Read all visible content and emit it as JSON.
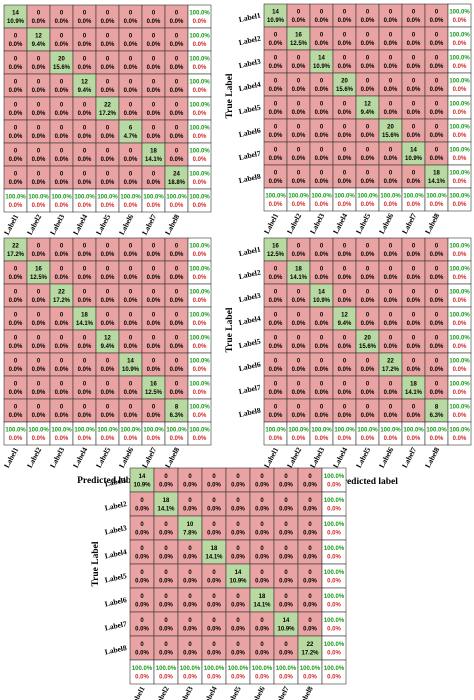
{
  "labels": [
    "Label1",
    "Label2",
    "Label3",
    "Label4",
    "Label5",
    "Label6",
    "Label7",
    "Label8"
  ],
  "colors": {
    "correct": "#b9d9a2",
    "incorrect": "#eaa3a3",
    "summary_bg": "#ffffff",
    "pct_good": "#1a9b1a",
    "pct_bad": "#d42a2a",
    "grid": "#333333",
    "text": "#000000"
  },
  "chart_data": [
    {
      "type": "heatmap",
      "show_true_label": false,
      "xlabel": "Predicted label",
      "ylabel": "",
      "diagonal": [
        14,
        12,
        20,
        12,
        22,
        6,
        18,
        24
      ],
      "diagonal_pct": [
        "10.9%",
        "9.4%",
        "15.6%",
        "9.4%",
        "17.2%",
        "4.7%",
        "14.1%",
        "18.8%"
      ],
      "zero_pct": "0.0%",
      "row_summary": [
        [
          "100.0%",
          "0.0%"
        ],
        [
          "100.0%",
          "0.0%"
        ],
        [
          "100.0%",
          "0.0%"
        ],
        [
          "100.0%",
          "0.0%"
        ],
        [
          "100.0%",
          "0.0%"
        ],
        [
          "100.0%",
          "0.0%"
        ],
        [
          "100.0%",
          "0.0%"
        ],
        [
          "100.0%",
          "0.0%"
        ]
      ],
      "col_summary": [
        [
          "100.0%",
          "0.0%"
        ],
        [
          "100.0%",
          "0.0%"
        ],
        [
          "100.0%",
          "0.0%"
        ],
        [
          "100.0%",
          "0.0%"
        ],
        [
          "100.0%",
          "0.0%"
        ],
        [
          "100.0%",
          "0.0%"
        ],
        [
          "100.0%",
          "0.0%"
        ],
        [
          "100.0%",
          "0.0%"
        ]
      ],
      "overall": [
        "100.0%",
        "0.0%"
      ]
    },
    {
      "type": "heatmap",
      "show_true_label": true,
      "xlabel": "Predicted label",
      "ylabel": "True Label",
      "diagonal": [
        14,
        16,
        14,
        20,
        12,
        20,
        14,
        18
      ],
      "diagonal_pct": [
        "10.9%",
        "12.5%",
        "10.9%",
        "15.6%",
        "9.4%",
        "15.6%",
        "10.9%",
        "14.1%"
      ],
      "zero_pct": "0.0%",
      "row_summary": [
        [
          "100.0%",
          "0.0%"
        ],
        [
          "100.0%",
          "0.0%"
        ],
        [
          "100.0%",
          "0.0%"
        ],
        [
          "100.0%",
          "0.0%"
        ],
        [
          "100.0%",
          "0.0%"
        ],
        [
          "100.0%",
          "0.0%"
        ],
        [
          "100.0%",
          "0.0%"
        ],
        [
          "100.0%",
          "0.0%"
        ]
      ],
      "col_summary": [
        [
          "100.0%",
          "0.0%"
        ],
        [
          "100.0%",
          "0.0%"
        ],
        [
          "100.0%",
          "0.0%"
        ],
        [
          "100.0%",
          "0.0%"
        ],
        [
          "100.0%",
          "0.0%"
        ],
        [
          "100.0%",
          "0.0%"
        ],
        [
          "100.0%",
          "0.0%"
        ],
        [
          "100.0%",
          "0.0%"
        ]
      ],
      "overall": [
        "100.0%",
        "0.0%"
      ]
    },
    {
      "type": "heatmap",
      "show_true_label": false,
      "xlabel": "Predicted label",
      "ylabel": "",
      "diagonal": [
        22,
        16,
        22,
        18,
        12,
        14,
        16,
        8
      ],
      "diagonal_pct": [
        "17.2%",
        "12.5%",
        "17.2%",
        "14.1%",
        "9.4%",
        "10.9%",
        "12.5%",
        "6.3%"
      ],
      "zero_pct": "0.0%",
      "row_summary": [
        [
          "100.0%",
          "0.0%"
        ],
        [
          "100.0%",
          "0.0%"
        ],
        [
          "100.0%",
          "0.0%"
        ],
        [
          "100.0%",
          "0.0%"
        ],
        [
          "100.0%",
          "0.0%"
        ],
        [
          "100.0%",
          "0.0%"
        ],
        [
          "100.0%",
          "0.0%"
        ],
        [
          "100.0%",
          "0.0%"
        ]
      ],
      "col_summary": [
        [
          "100.0%",
          "0.0%"
        ],
        [
          "100.0%",
          "0.0%"
        ],
        [
          "100.0%",
          "0.0%"
        ],
        [
          "100.0%",
          "0.0%"
        ],
        [
          "100.0%",
          "0.0%"
        ],
        [
          "100.0%",
          "0.0%"
        ],
        [
          "100.0%",
          "0.0%"
        ],
        [
          "100.0%",
          "0.0%"
        ]
      ],
      "overall": [
        "100.0%",
        "0.0%"
      ]
    },
    {
      "type": "heatmap",
      "show_true_label": true,
      "xlabel": "Predicted label",
      "ylabel": "True Label",
      "diagonal": [
        16,
        18,
        14,
        12,
        20,
        22,
        18,
        8
      ],
      "diagonal_pct": [
        "12.5%",
        "14.1%",
        "10.9%",
        "9.4%",
        "15.6%",
        "17.2%",
        "14.1%",
        "6.3%"
      ],
      "zero_pct": "0.0%",
      "row_summary": [
        [
          "100.0%",
          "0.0%"
        ],
        [
          "100.0%",
          "0.0%"
        ],
        [
          "100.0%",
          "0.0%"
        ],
        [
          "100.0%",
          "0.0%"
        ],
        [
          "100.0%",
          "0.0%"
        ],
        [
          "100.0%",
          "0.0%"
        ],
        [
          "100.0%",
          "0.0%"
        ],
        [
          "100.0%",
          "0.0%"
        ]
      ],
      "col_summary": [
        [
          "100.0%",
          "0.0%"
        ],
        [
          "100.0%",
          "0.0%"
        ],
        [
          "100.0%",
          "0.0%"
        ],
        [
          "100.0%",
          "0.0%"
        ],
        [
          "100.0%",
          "0.0%"
        ],
        [
          "100.0%",
          "0.0%"
        ],
        [
          "100.0%",
          "0.0%"
        ],
        [
          "100.0%",
          "0.0%"
        ]
      ],
      "overall": [
        "100.0%",
        "0.0%"
      ]
    },
    {
      "type": "heatmap",
      "show_true_label": true,
      "xlabel": "Predicted label",
      "ylabel": "True Label",
      "diagonal": [
        14,
        18,
        10,
        18,
        14,
        18,
        14,
        22
      ],
      "diagonal_pct": [
        "10.9%",
        "14.1%",
        "7.8%",
        "14.1%",
        "10.9%",
        "14.1%",
        "10.9%",
        "17.2%"
      ],
      "zero_pct": "0.0%",
      "row_summary": [
        [
          "100.0%",
          "0.0%"
        ],
        [
          "100.0%",
          "0.0%"
        ],
        [
          "100.0%",
          "0.0%"
        ],
        [
          "100.0%",
          "0.0%"
        ],
        [
          "100.0%",
          "0.0%"
        ],
        [
          "100.0%",
          "0.0%"
        ],
        [
          "100.0%",
          "0.0%"
        ],
        [
          "100.0%",
          "0.0%"
        ]
      ],
      "col_summary": [
        [
          "100.0%",
          "0.0%"
        ],
        [
          "100.0%",
          "0.0%"
        ],
        [
          "100.0%",
          "0.0%"
        ],
        [
          "100.0%",
          "0.0%"
        ],
        [
          "100.0%",
          "0.0%"
        ],
        [
          "100.0%",
          "0.0%"
        ],
        [
          "100.0%",
          "0.0%"
        ],
        [
          "100.0%",
          "0.0%"
        ]
      ],
      "overall": [
        "100.0%",
        "0.0%"
      ]
    }
  ]
}
